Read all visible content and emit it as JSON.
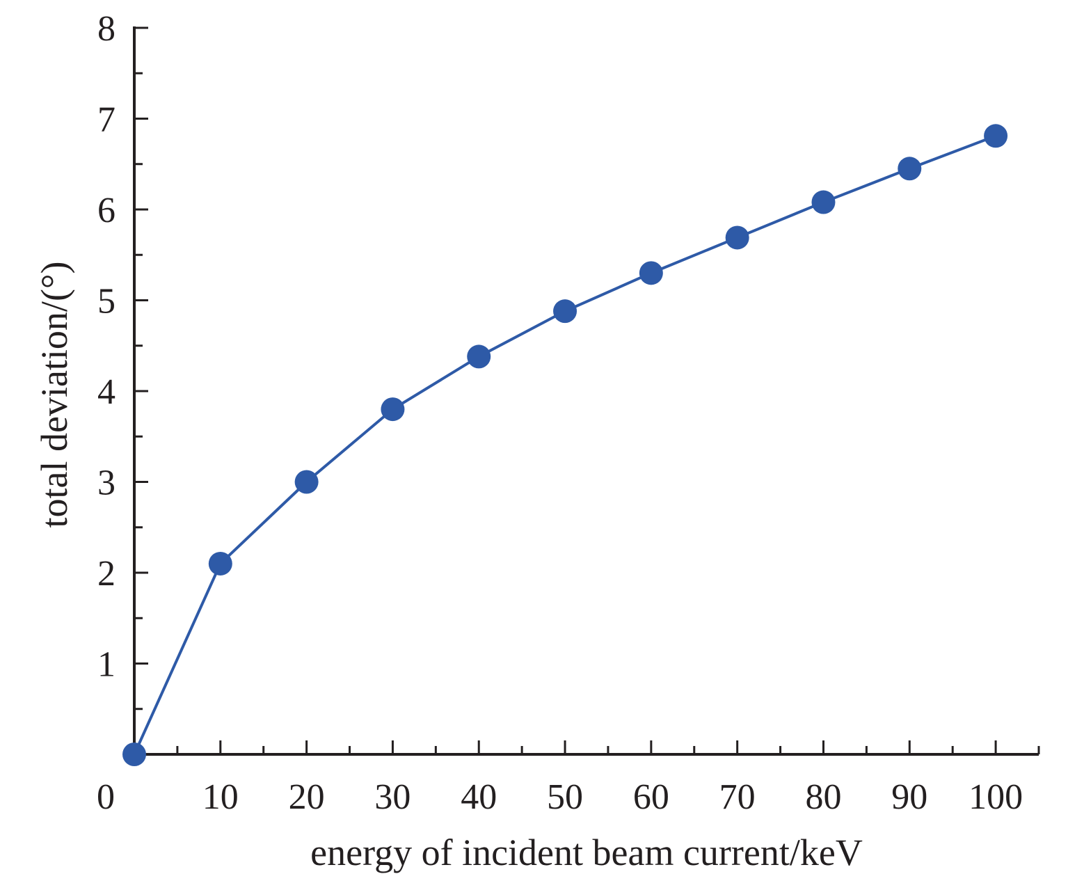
{
  "chart_data": {
    "type": "line",
    "title": "",
    "xlabel": "energy of incident beam current/keV",
    "ylabel": "total deviation/(°)",
    "xlim": [
      0,
      105
    ],
    "ylim": [
      0,
      8
    ],
    "x_ticks": [
      0,
      10,
      20,
      30,
      40,
      50,
      60,
      70,
      80,
      90,
      100
    ],
    "x_tick_labels": [
      "0",
      "10",
      "20",
      "30",
      "40",
      "50",
      "60",
      "70",
      "80",
      "90",
      "100"
    ],
    "y_ticks": [
      1,
      2,
      3,
      4,
      5,
      6,
      7,
      8
    ],
    "y_tick_labels": [
      "1",
      "2",
      "3",
      "4",
      "5",
      "6",
      "7",
      "8"
    ],
    "grid": false,
    "legend": "none",
    "series": [
      {
        "x": [
          0,
          10,
          20,
          30,
          40,
          50,
          60,
          70,
          80,
          90,
          100
        ],
        "values": [
          0.0,
          2.1,
          3.0,
          3.8,
          4.38,
          4.88,
          5.3,
          5.69,
          6.08,
          6.45,
          6.81
        ],
        "color": "#2e5aa7",
        "marker": "circle"
      }
    ],
    "axis_color": "#231f20"
  }
}
